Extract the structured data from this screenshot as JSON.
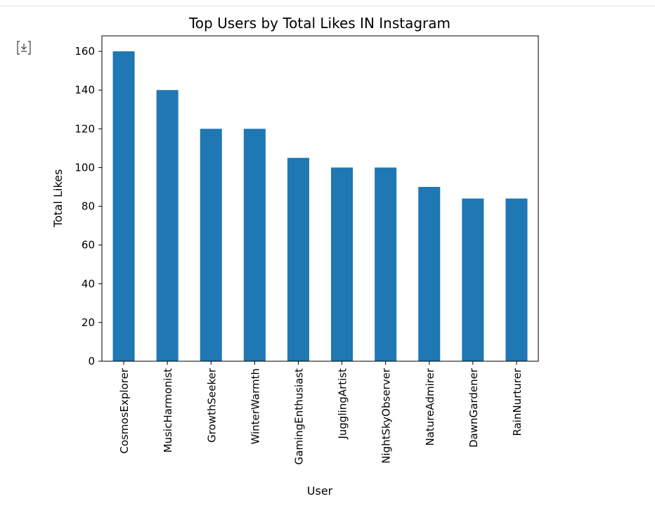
{
  "cell": {
    "output_icon": "output-expand-icon"
  },
  "chart_data": {
    "type": "bar",
    "title": "Top Users by Total Likes IN Instagram",
    "xlabel": "User",
    "ylabel": "Total Likes",
    "categories": [
      "CosmosExplorer",
      "MusicHarmonist",
      "GrowthSeeker",
      "WinterWarmth",
      "GamingEnthusiast",
      "JugglingArtist",
      "NightSkyObserver",
      "NatureAdmirer",
      "DawnGardener",
      "RainNurturer"
    ],
    "values": [
      160,
      140,
      120,
      120,
      105,
      100,
      100,
      90,
      84,
      84
    ],
    "ylim": [
      0,
      168
    ],
    "yticks": [
      0,
      20,
      40,
      60,
      80,
      100,
      120,
      140,
      160
    ],
    "bar_color": "#1f77b4",
    "grid": false,
    "legend": false
  }
}
